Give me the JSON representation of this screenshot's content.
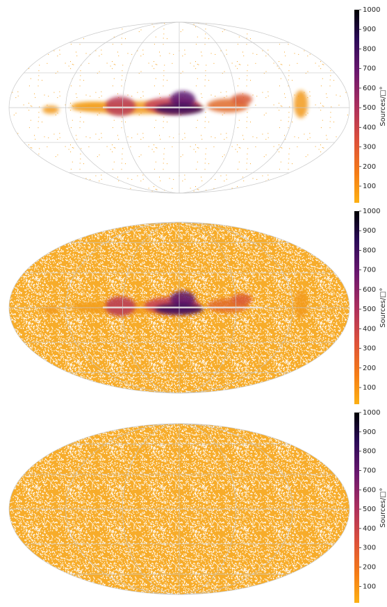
{
  "chart_data": [
    {
      "type": "map",
      "colorbar_label": "Sources/□°",
      "clim": [
        15,
        1000
      ],
      "cticks": [
        100,
        200,
        300,
        400,
        500,
        600,
        700,
        800,
        900,
        1000
      ]
    },
    {
      "type": "map",
      "colorbar_label": "Sources/□°",
      "clim": [
        15,
        1000
      ],
      "cticks": [
        100,
        200,
        300,
        400,
        500,
        600,
        700,
        800,
        900,
        1000
      ]
    },
    {
      "type": "map",
      "colorbar_label": "Sources/□°",
      "clim": [
        15,
        1000
      ],
      "cticks": [
        100,
        200,
        300,
        400,
        500,
        600,
        700,
        800,
        900,
        1000
      ]
    }
  ]
}
